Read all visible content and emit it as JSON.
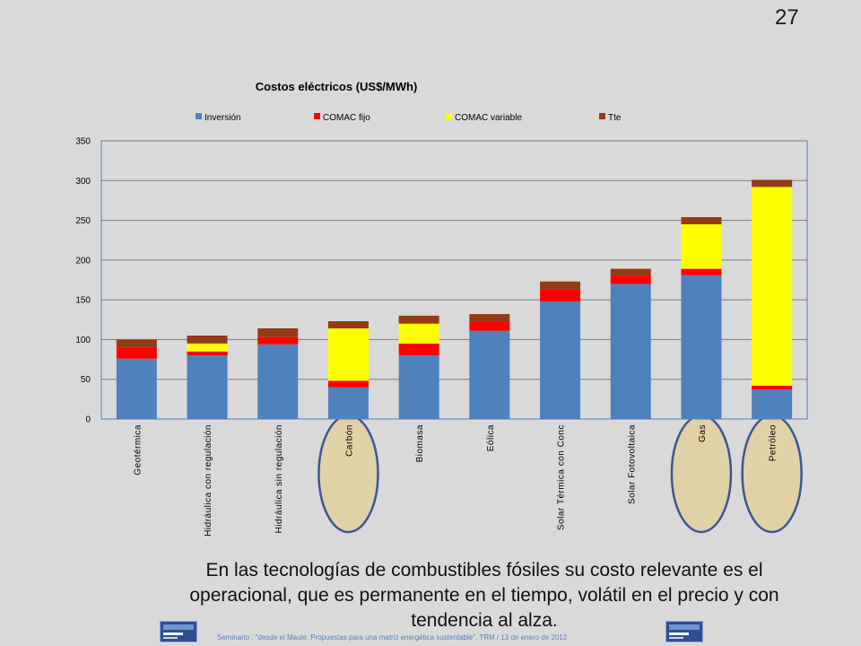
{
  "slide": {
    "number": "27",
    "caption": "En las tecnologías de combustibles fósiles su costo relevante es el operacional, que es permanente en el tiempo, volátil en el precio y con tendencia al alza.",
    "footer": "Seminario : \"desde el Maule: Propuestas para una matriz energética sustentable\".  TRM  /  13 de enero de 2012",
    "highlighted_categories": [
      "Carbón",
      "Gas",
      "Petróleo"
    ],
    "highlight_color": "#e0d1a6",
    "highlight_border": "#3b5796"
  },
  "chart_data": {
    "type": "bar",
    "stacked": true,
    "title": "Costos eléctricos (US$/MWh)",
    "legend_position": "top",
    "grid": true,
    "ylim": [
      0,
      350
    ],
    "yticks": [
      0,
      50,
      100,
      150,
      200,
      250,
      300,
      350
    ],
    "categories": [
      "Geotérmica",
      "Hidráulica con regulación",
      "Hidráulica sin regulación",
      "Carbón",
      "Biomasa",
      "Eólica",
      "Solar Térmica con Conc",
      "Solar Fotovoltaica",
      "Gas",
      "Petróleo"
    ],
    "series": [
      {
        "name": "Inversión",
        "color": "#4f81bd",
        "values": [
          76,
          80,
          94,
          40,
          80,
          111,
          148,
          170,
          181,
          37
        ]
      },
      {
        "name": "COMAC fijo",
        "color": "#ff0000",
        "values": [
          14,
          5,
          9,
          8,
          15,
          11,
          15,
          10,
          8,
          5
        ]
      },
      {
        "name": "COMAC variable",
        "color": "#ffff00",
        "values": [
          0,
          10,
          0,
          66,
          25,
          0,
          0,
          0,
          56,
          250
        ]
      },
      {
        "name": "Tte",
        "color": "#953a17",
        "values": [
          10,
          10,
          11,
          9,
          10,
          10,
          10,
          9,
          9,
          9
        ]
      }
    ]
  }
}
